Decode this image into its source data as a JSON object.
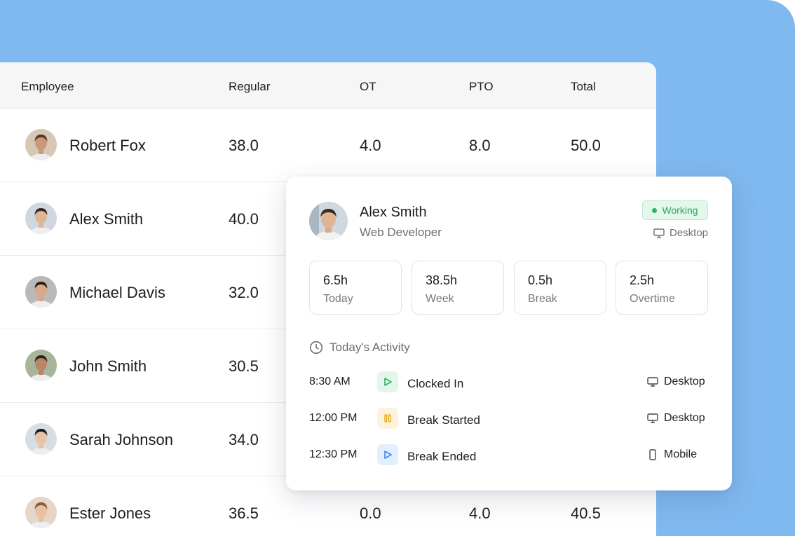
{
  "table": {
    "headers": {
      "employee": "Employee",
      "regular": "Regular",
      "ot": "OT",
      "pto": "PTO",
      "total": "Total"
    },
    "rows": [
      {
        "name": "Robert Fox",
        "regular": "38.0",
        "ot": "4.0",
        "pto": "8.0",
        "total": "50.0",
        "avatar_skin": "#c99a7a",
        "avatar_hair": "#5a3a26",
        "avatar_bg": "#d7c8b6"
      },
      {
        "name": "Alex Smith",
        "regular": "40.0",
        "ot": "",
        "pto": "",
        "total": "",
        "avatar_skin": "#e0b595",
        "avatar_hair": "#3b2a22",
        "avatar_bg": "#cfd8e0"
      },
      {
        "name": "Michael Davis",
        "regular": "32.0",
        "ot": "",
        "pto": "",
        "total": "",
        "avatar_skin": "#d8a888",
        "avatar_hair": "#2a1d17",
        "avatar_bg": "#b9b9b9"
      },
      {
        "name": "John Smith",
        "regular": "30.5",
        "ot": "",
        "pto": "",
        "total": "",
        "avatar_skin": "#b88668",
        "avatar_hair": "#2c2420",
        "avatar_bg": "#a8b59a"
      },
      {
        "name": "Sarah Johnson",
        "regular": "34.0",
        "ot": "",
        "pto": "",
        "total": "",
        "avatar_skin": "#e6c2a6",
        "avatar_hair": "#1e1a1a",
        "avatar_bg": "#d6dde4"
      },
      {
        "name": "Ester Jones",
        "regular": "36.5",
        "ot": "0.0",
        "pto": "4.0",
        "total": "40.5",
        "avatar_skin": "#e8c0a2",
        "avatar_hair": "#8a5a38",
        "avatar_bg": "#e5d6c8"
      }
    ]
  },
  "detail": {
    "name": "Alex Smith",
    "role": "Web Developer",
    "status": "Working",
    "device": "Desktop",
    "stats": [
      {
        "value": "6.5h",
        "label": "Today"
      },
      {
        "value": "38.5h",
        "label": "Week"
      },
      {
        "value": "0.5h",
        "label": "Break"
      },
      {
        "value": "2.5h",
        "label": "Overtime"
      }
    ],
    "activity_title": "Today's Activity",
    "activities": [
      {
        "time": "8:30 AM",
        "label": "Clocked In",
        "device": "Desktop",
        "icon": "play-icon",
        "device_icon": "desktop-icon"
      },
      {
        "time": "12:00 PM",
        "label": "Break Started",
        "device": "Desktop",
        "icon": "pause-icon",
        "device_icon": "desktop-icon"
      },
      {
        "time": "12:30 PM",
        "label": "Break Ended",
        "device": "Mobile",
        "icon": "play-icon",
        "device_icon": "mobile-icon"
      }
    ]
  },
  "colors": {
    "background": "#80b9ef",
    "status_green": "#2fb463",
    "clock_in_bg": "#e3f6ea",
    "clock_in_fg": "#2fb463",
    "break_bg": "#fdf3dc",
    "break_fg": "#e6a817",
    "break_end_bg": "#e3efff",
    "break_end_fg": "#3a86f0"
  }
}
